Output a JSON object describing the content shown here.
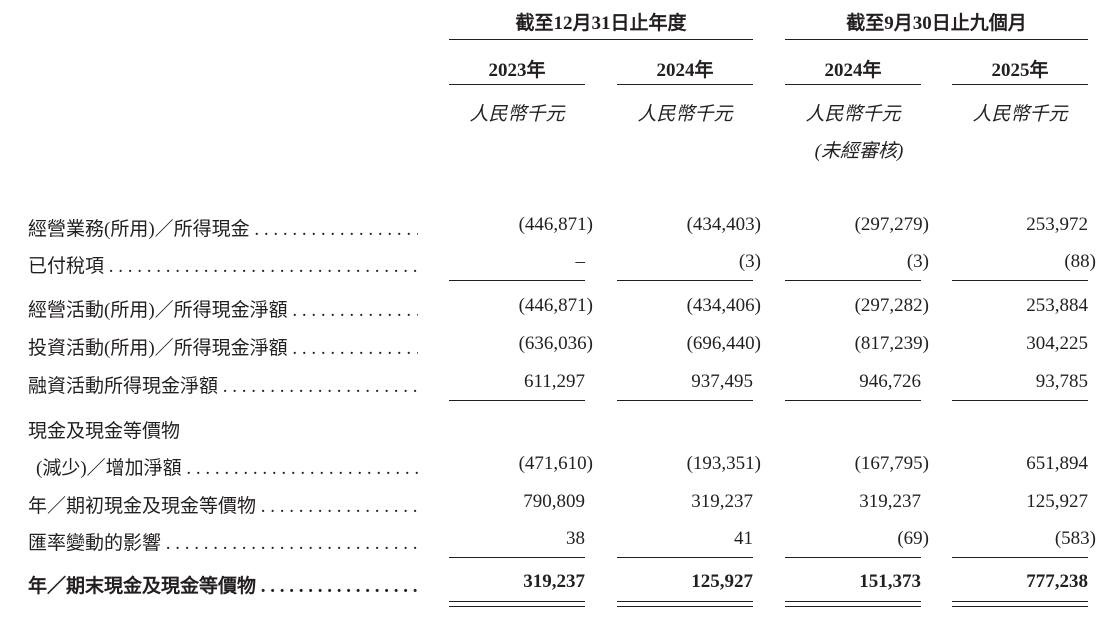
{
  "header": {
    "groups": [
      {
        "label": "截至12月31日止年度"
      },
      {
        "label": "截至9月30日止九個月"
      }
    ],
    "columns": [
      {
        "year": "2023年",
        "unit": "人民幣千元",
        "note": ""
      },
      {
        "year": "2024年",
        "unit": "人民幣千元",
        "note": ""
      },
      {
        "year": "2024年",
        "unit": "人民幣千元",
        "note": "(未經審核)"
      },
      {
        "year": "2025年",
        "unit": "人民幣千元",
        "note": ""
      }
    ]
  },
  "rows": [
    {
      "label": "經營業務(所用)／所得現金",
      "values": [
        "(446,871)",
        "(434,403)",
        "(297,279)",
        "253,972"
      ]
    },
    {
      "label": "已付稅項",
      "values": [
        "–",
        "(3)",
        "(3)",
        "(88)"
      ],
      "rule_below": "single"
    },
    {
      "label": "經營活動(所用)／所得現金淨額",
      "values": [
        "(446,871)",
        "(434,406)",
        "(297,282)",
        "253,884"
      ]
    },
    {
      "label": "投資活動(所用)／所得現金淨額",
      "values": [
        "(636,036)",
        "(696,440)",
        "(817,239)",
        "304,225"
      ]
    },
    {
      "label": "融資活動所得現金淨額",
      "values": [
        "611,297",
        "937,495",
        "946,726",
        "93,785"
      ],
      "rule_below": "single"
    },
    {
      "label": "現金及現金等價物",
      "values": [],
      "no_leader": true
    },
    {
      "label": "(減少)／增加淨額",
      "values": [
        "(471,610)",
        "(193,351)",
        "(167,795)",
        "651,894"
      ],
      "indent": true
    },
    {
      "label": "年／期初現金及現金等價物",
      "values": [
        "790,809",
        "319,237",
        "319,237",
        "125,927"
      ]
    },
    {
      "label": "匯率變動的影響",
      "values": [
        "38",
        "41",
        "(69)",
        "(583)"
      ],
      "rule_below": "single"
    },
    {
      "label": "年／期末現金及現金等價物",
      "values": [
        "319,237",
        "125,927",
        "151,373",
        "777,238"
      ],
      "bold": true,
      "rule_below": "double"
    }
  ]
}
